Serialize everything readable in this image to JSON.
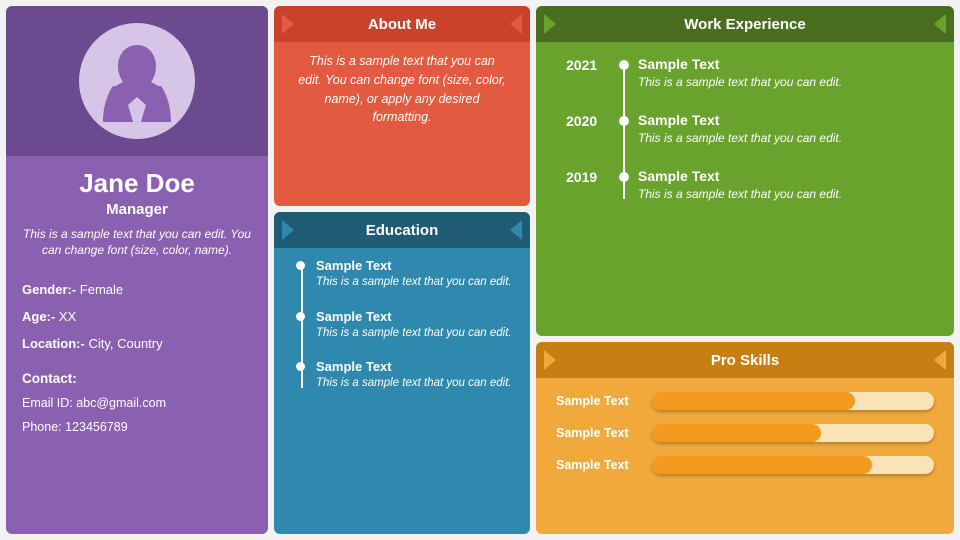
{
  "colors": {
    "page_bg": "#f2f2f2",
    "purple_dark": "#6b4a8f",
    "purple_light": "#8a60b0",
    "avatar_bg": "#d6c5e6",
    "avatar_fg": "#8a60b0",
    "about_header": "#c9422c",
    "about_body": "#e25b40",
    "edu_header": "#1f5b75",
    "edu_body": "#2f88ad",
    "work_header": "#4a6e1f",
    "work_body": "#6aa22e",
    "skills_header": "#c77f14",
    "skills_body": "#f0a93a",
    "skill_track": "#fbe3b8",
    "skill_fill": "#f29b1f"
  },
  "profile": {
    "name": "Jane Doe",
    "role": "Manager",
    "bio": "This is a sample text that you can edit. You can change font (size, color, name).",
    "gender_label": "Gender:-",
    "gender_value": "Female",
    "age_label": "Age:-",
    "age_value": "XX",
    "location_label": "Location:-",
    "location_value": "City, Country",
    "contact_label": "Contact:",
    "email_label": "Email ID:",
    "email_value": "abc@gmail.com",
    "phone_label": "Phone:",
    "phone_value": "123456789"
  },
  "about": {
    "title": "About Me",
    "text": "This is a sample text that you can edit. You can change font (size, color, name), or apply any desired formatting."
  },
  "education": {
    "title": "Education",
    "items": [
      {
        "title": "Sample Text",
        "sub": "This is a sample text that you can edit."
      },
      {
        "title": "Sample Text",
        "sub": "This is a sample text that you can edit."
      },
      {
        "title": "Sample Text",
        "sub": "This is a sample text that you can edit."
      }
    ]
  },
  "work": {
    "title": "Work Experience",
    "items": [
      {
        "year": "2021",
        "title": "Sample Text",
        "sub": "This is a sample text that you can edit."
      },
      {
        "year": "2020",
        "title": "Sample Text",
        "sub": "This is a sample text that you can edit."
      },
      {
        "year": "2019",
        "title": "Sample Text",
        "sub": "This is a sample text that you can edit."
      }
    ]
  },
  "skills": {
    "title": "Pro Skills",
    "items": [
      {
        "label": "Sample Text",
        "pct": 72
      },
      {
        "label": "Sample Text",
        "pct": 60
      },
      {
        "label": "Sample Text",
        "pct": 78
      }
    ]
  }
}
